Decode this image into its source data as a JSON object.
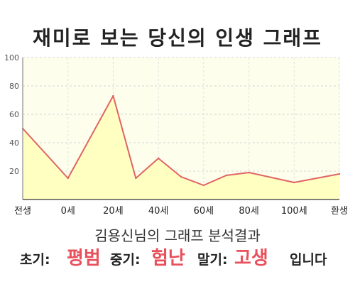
{
  "chart_data": {
    "type": "area",
    "title": "재미로 보는 당신의 인생 그래프",
    "xlabel": "",
    "ylabel": "",
    "xlim": [
      -20,
      120
    ],
    "ylim": [
      0,
      100
    ],
    "x_ticks": [
      {
        "value": -20,
        "label": "전생"
      },
      {
        "value": 0,
        "label": "0세"
      },
      {
        "value": 20,
        "label": "20세"
      },
      {
        "value": 40,
        "label": "40세"
      },
      {
        "value": 60,
        "label": "60세"
      },
      {
        "value": 80,
        "label": "80세"
      },
      {
        "value": 100,
        "label": "100세"
      },
      {
        "value": 120,
        "label": "환생"
      }
    ],
    "y_ticks": [
      20,
      40,
      60,
      80,
      100
    ],
    "series": [
      {
        "x": [
          -20,
          0,
          20,
          30,
          40,
          50,
          60,
          70,
          80,
          100,
          120
        ],
        "y": [
          50,
          15,
          73,
          15,
          29,
          16,
          10,
          17,
          19,
          12,
          18
        ],
        "line_color": "#e06464",
        "fill_color": "#ffffbc"
      }
    ],
    "grid": true,
    "legend": "none"
  },
  "analysis": {
    "heading": "김용신님의 그래프 분석결과",
    "early_label": "초기:",
    "early_value": "평범",
    "middle_label": "중기:",
    "middle_value": "험난",
    "late_label": "말기:",
    "late_value": "고생",
    "ending": "입니다"
  },
  "colors": {
    "result_value": "#e8505c",
    "plot_background": "#fefeec"
  }
}
